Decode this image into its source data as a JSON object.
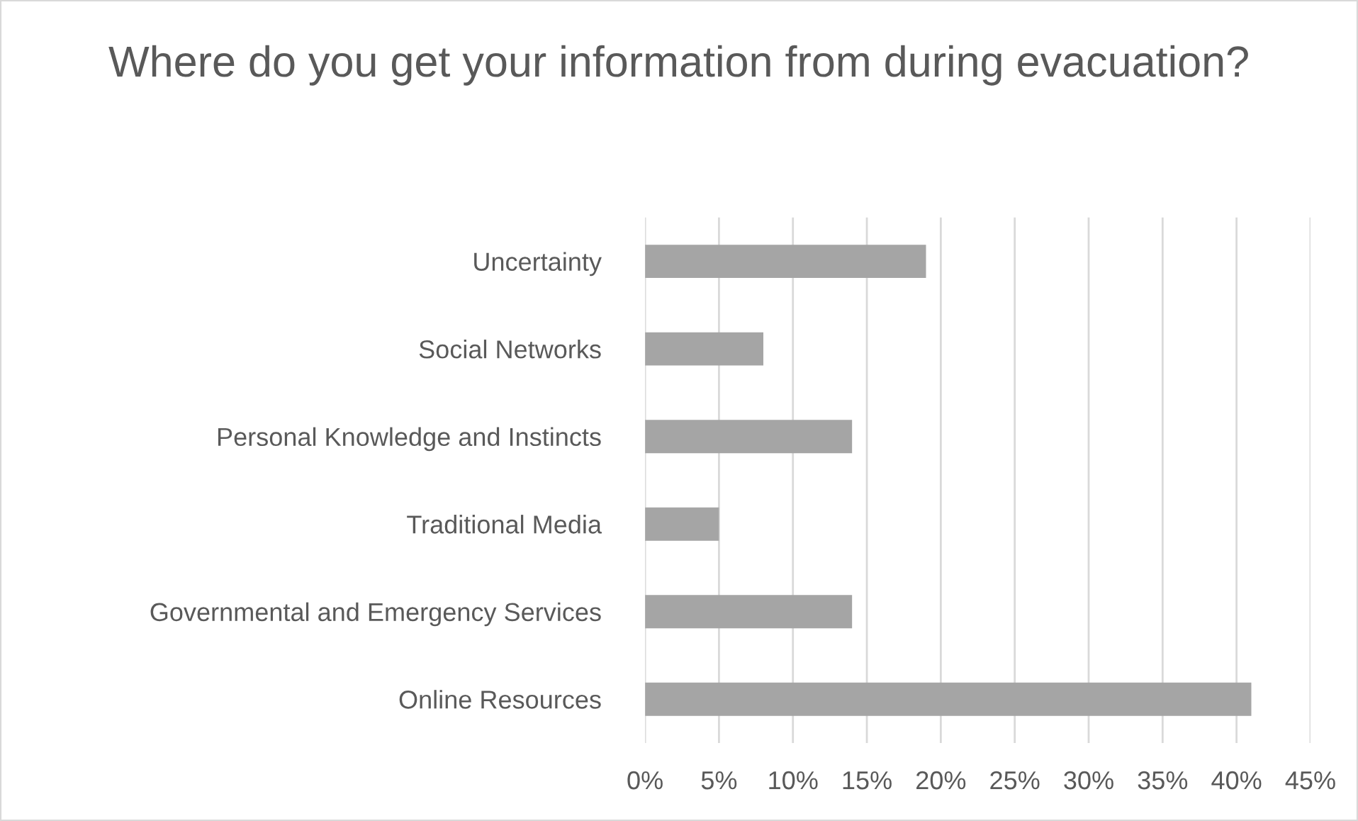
{
  "chart_data": {
    "type": "bar",
    "orientation": "horizontal",
    "title": "Where do you get your information from during evacuation?",
    "categories": [
      "Uncertainty",
      "Social Networks",
      "Personal Knowledge and Instincts",
      "Traditional Media",
      "Governmental and Emergency Services",
      "Online Resources"
    ],
    "values": [
      19,
      8,
      14,
      5,
      14,
      41
    ],
    "color": "#a5a5a5",
    "xlim": [
      0,
      45
    ],
    "xticks": [
      {
        "value": 0,
        "label": "0%"
      },
      {
        "value": 5,
        "label": "5%"
      },
      {
        "value": 10,
        "label": "10%"
      },
      {
        "value": 15,
        "label": "15%"
      },
      {
        "value": 20,
        "label": "20%"
      },
      {
        "value": 25,
        "label": "25%"
      },
      {
        "value": 30,
        "label": "30%"
      },
      {
        "value": 35,
        "label": "35%"
      },
      {
        "value": 40,
        "label": "40%"
      },
      {
        "value": 45,
        "label": "45%"
      }
    ],
    "grid": "x",
    "legend": false
  }
}
